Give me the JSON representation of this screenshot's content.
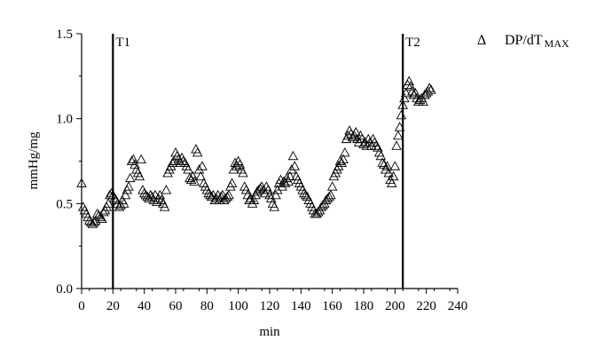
{
  "chart_data": {
    "type": "scatter",
    "xlabel": "min",
    "ylabel": "mmHg/mg",
    "xlim": [
      0,
      240
    ],
    "ylim": [
      0.0,
      1.5
    ],
    "x_ticks": [
      0,
      20,
      40,
      60,
      80,
      100,
      120,
      140,
      160,
      180,
      200,
      220,
      240
    ],
    "y_ticks": [
      "0.0",
      "0.5",
      "1.0",
      "1.5"
    ],
    "grid": false,
    "legend": {
      "marker": "Δ",
      "label_main": "DP/dT",
      "label_sub": "MAX",
      "placement": "top-right"
    },
    "marker": "open-triangle",
    "vlines": [
      {
        "x": 20,
        "label": "T1"
      },
      {
        "x": 205,
        "label": "T2"
      }
    ],
    "series": [
      {
        "name": "DP/dT MAX",
        "points": [
          [
            0,
            0.62
          ],
          [
            1,
            0.48
          ],
          [
            2,
            0.46
          ],
          [
            3,
            0.44
          ],
          [
            4,
            0.42
          ],
          [
            5,
            0.4
          ],
          [
            6,
            0.39
          ],
          [
            7,
            0.38
          ],
          [
            8,
            0.39
          ],
          [
            9,
            0.4
          ],
          [
            10,
            0.44
          ],
          [
            11,
            0.43
          ],
          [
            12,
            0.42
          ],
          [
            13,
            0.41
          ],
          [
            14,
            0.45
          ],
          [
            15,
            0.46
          ],
          [
            16,
            0.48
          ],
          [
            17,
            0.5
          ],
          [
            18,
            0.55
          ],
          [
            19,
            0.56
          ],
          [
            20,
            0.55
          ],
          [
            21,
            0.53
          ],
          [
            22,
            0.52
          ],
          [
            23,
            0.5
          ],
          [
            24,
            0.48
          ],
          [
            25,
            0.49
          ],
          [
            26,
            0.52
          ],
          [
            27,
            0.5
          ],
          [
            28,
            0.55
          ],
          [
            29,
            0.58
          ],
          [
            30,
            0.6
          ],
          [
            31,
            0.65
          ],
          [
            32,
            0.75
          ],
          [
            33,
            0.76
          ],
          [
            34,
            0.73
          ],
          [
            35,
            0.7
          ],
          [
            36,
            0.68
          ],
          [
            37,
            0.66
          ],
          [
            38,
            0.76
          ],
          [
            39,
            0.58
          ],
          [
            40,
            0.56
          ],
          [
            41,
            0.55
          ],
          [
            42,
            0.54
          ],
          [
            43,
            0.53
          ],
          [
            44,
            0.55
          ],
          [
            45,
            0.54
          ],
          [
            46,
            0.52
          ],
          [
            47,
            0.55
          ],
          [
            48,
            0.51
          ],
          [
            49,
            0.53
          ],
          [
            50,
            0.55
          ],
          [
            51,
            0.52
          ],
          [
            52,
            0.5
          ],
          [
            53,
            0.48
          ],
          [
            54,
            0.58
          ],
          [
            55,
            0.68
          ],
          [
            56,
            0.7
          ],
          [
            57,
            0.72
          ],
          [
            58,
            0.74
          ],
          [
            59,
            0.75
          ],
          [
            60,
            0.8
          ],
          [
            61,
            0.78
          ],
          [
            62,
            0.76
          ],
          [
            63,
            0.74
          ],
          [
            64,
            0.77
          ],
          [
            65,
            0.75
          ],
          [
            66,
            0.74
          ],
          [
            67,
            0.72
          ],
          [
            68,
            0.7
          ],
          [
            69,
            0.65
          ],
          [
            70,
            0.64
          ],
          [
            71,
            0.66
          ],
          [
            72,
            0.63
          ],
          [
            73,
            0.82
          ],
          [
            74,
            0.8
          ],
          [
            75,
            0.7
          ],
          [
            76,
            0.66
          ],
          [
            77,
            0.72
          ],
          [
            78,
            0.62
          ],
          [
            79,
            0.6
          ],
          [
            80,
            0.58
          ],
          [
            81,
            0.56
          ],
          [
            82,
            0.55
          ],
          [
            83,
            0.54
          ],
          [
            84,
            0.55
          ],
          [
            85,
            0.52
          ],
          [
            86,
            0.53
          ],
          [
            87,
            0.55
          ],
          [
            88,
            0.52
          ],
          [
            89,
            0.54
          ],
          [
            90,
            0.55
          ],
          [
            91,
            0.52
          ],
          [
            92,
            0.53
          ],
          [
            93,
            0.54
          ],
          [
            94,
            0.55
          ],
          [
            95,
            0.6
          ],
          [
            96,
            0.62
          ],
          [
            97,
            0.7
          ],
          [
            98,
            0.74
          ],
          [
            99,
            0.72
          ],
          [
            100,
            0.75
          ],
          [
            101,
            0.73
          ],
          [
            102,
            0.7
          ],
          [
            103,
            0.68
          ],
          [
            104,
            0.6
          ],
          [
            105,
            0.58
          ],
          [
            106,
            0.55
          ],
          [
            107,
            0.52
          ],
          [
            108,
            0.53
          ],
          [
            109,
            0.5
          ],
          [
            110,
            0.52
          ],
          [
            111,
            0.55
          ],
          [
            112,
            0.57
          ],
          [
            113,
            0.58
          ],
          [
            114,
            0.59
          ],
          [
            115,
            0.6
          ],
          [
            116,
            0.58
          ],
          [
            117,
            0.56
          ],
          [
            118,
            0.6
          ],
          [
            119,
            0.58
          ],
          [
            120,
            0.55
          ],
          [
            121,
            0.53
          ],
          [
            122,
            0.5
          ],
          [
            123,
            0.48
          ],
          [
            124,
            0.55
          ],
          [
            125,
            0.58
          ],
          [
            126,
            0.62
          ],
          [
            127,
            0.64
          ],
          [
            128,
            0.6
          ],
          [
            129,
            0.63
          ],
          [
            130,
            0.62
          ],
          [
            131,
            0.65
          ],
          [
            132,
            0.63
          ],
          [
            133,
            0.66
          ],
          [
            134,
            0.7
          ],
          [
            135,
            0.78
          ],
          [
            136,
            0.72
          ],
          [
            137,
            0.66
          ],
          [
            138,
            0.64
          ],
          [
            139,
            0.62
          ],
          [
            140,
            0.6
          ],
          [
            141,
            0.58
          ],
          [
            142,
            0.56
          ],
          [
            143,
            0.55
          ],
          [
            144,
            0.54
          ],
          [
            145,
            0.52
          ],
          [
            146,
            0.5
          ],
          [
            147,
            0.48
          ],
          [
            148,
            0.46
          ],
          [
            149,
            0.44
          ],
          [
            150,
            0.44
          ],
          [
            151,
            0.45
          ],
          [
            152,
            0.46
          ],
          [
            153,
            0.48
          ],
          [
            154,
            0.49
          ],
          [
            155,
            0.5
          ],
          [
            156,
            0.52
          ],
          [
            157,
            0.53
          ],
          [
            158,
            0.54
          ],
          [
            159,
            0.55
          ],
          [
            160,
            0.6
          ],
          [
            161,
            0.66
          ],
          [
            162,
            0.68
          ],
          [
            163,
            0.7
          ],
          [
            164,
            0.72
          ],
          [
            165,
            0.75
          ],
          [
            166,
            0.74
          ],
          [
            167,
            0.76
          ],
          [
            168,
            0.8
          ],
          [
            169,
            0.88
          ],
          [
            170,
            0.9
          ],
          [
            171,
            0.93
          ],
          [
            172,
            0.91
          ],
          [
            173,
            0.89
          ],
          [
            174,
            0.9
          ],
          [
            175,
            0.92
          ],
          [
            176,
            0.88
          ],
          [
            177,
            0.86
          ],
          [
            178,
            0.9
          ],
          [
            179,
            0.88
          ],
          [
            180,
            0.85
          ],
          [
            181,
            0.86
          ],
          [
            182,
            0.84
          ],
          [
            183,
            0.88
          ],
          [
            184,
            0.86
          ],
          [
            185,
            0.84
          ],
          [
            186,
            0.88
          ],
          [
            187,
            0.86
          ],
          [
            188,
            0.84
          ],
          [
            189,
            0.83
          ],
          [
            190,
            0.8
          ],
          [
            191,
            0.78
          ],
          [
            192,
            0.74
          ],
          [
            193,
            0.73
          ],
          [
            194,
            0.7
          ],
          [
            195,
            0.72
          ],
          [
            196,
            0.68
          ],
          [
            197,
            0.64
          ],
          [
            198,
            0.62
          ],
          [
            199,
            0.66
          ],
          [
            200,
            0.72
          ],
          [
            201,
            0.84
          ],
          [
            202,
            0.9
          ],
          [
            203,
            0.95
          ],
          [
            204,
            1.02
          ],
          [
            205,
            1.08
          ],
          [
            206,
            1.12
          ],
          [
            207,
            1.15
          ],
          [
            208,
            1.2
          ],
          [
            209,
            1.22
          ],
          [
            210,
            1.19
          ],
          [
            211,
            1.16
          ],
          [
            212,
            1.14
          ],
          [
            213,
            1.15
          ],
          [
            214,
            1.12
          ],
          [
            215,
            1.1
          ],
          [
            216,
            1.11
          ],
          [
            217,
            1.12
          ],
          [
            218,
            1.1
          ],
          [
            219,
            1.14
          ],
          [
            220,
            1.15
          ],
          [
            221,
            1.16
          ],
          [
            222,
            1.18
          ],
          [
            223,
            1.17
          ]
        ]
      }
    ]
  }
}
